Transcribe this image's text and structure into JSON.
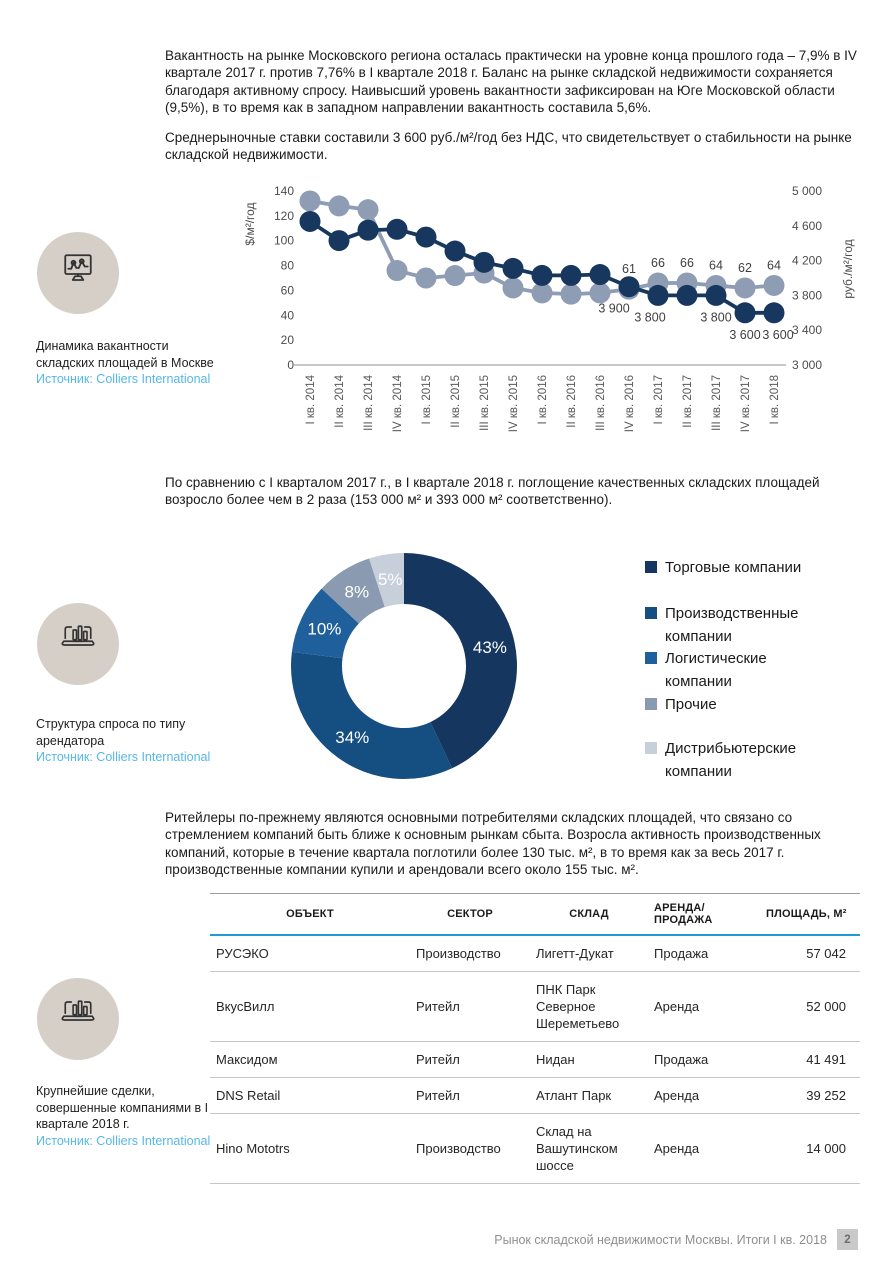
{
  "paragraphs": {
    "p1": "Вакантность на рынке Московского региона осталась практически на уровне конца прошлого года – 7,9% в IV квартале 2017 г. против 7,76% в I квартале 2018 г. Баланс на рынке складской недвижимости сохраняется благодаря активному спросу. Наивысший уровень вакантности зафиксирован на Юге Московской области (9,5%), в то время как в западном направлении вакантность составила 5,6%.",
    "p2": "Среднерыночные ставки составили 3 600 руб./м²/год без НДС, что свидетельствует о стабильности на рынке складской недвижимости.",
    "p3": "По сравнению с I кварталом 2017 г., в I квартале 2018 г. поглощение качественных складских площадей возросло более чем в 2 раза (153 000 м² и 393 000 м² соответственно).",
    "p4": "Ритейлеры по-прежнему являются основными потребителями складских площадей, что связано со стремлением компаний быть ближе к основным рынкам сбыта. Возросла активность производственных компаний, которые в течение квартала поглотили более 130 тыс. м², в то время как за весь 2017 г. производственные компании купили и арендовали всего около 155 тыс. м²."
  },
  "figures": [
    {
      "caption": "Динамика вакантности складских площадей в Москве",
      "source": "Источник: Colliers International",
      "icon": "monitor-chart-icon"
    },
    {
      "caption": "Структура спроса по типу арендатора",
      "source": "Источник: Colliers International",
      "icon": "laptop-chart-icon"
    },
    {
      "caption": "Крупнейшие сделки, совершенные компаниями в I квартале 2018 г.",
      "source": "Источник: Colliers International",
      "icon": "laptop-chart-icon"
    }
  ],
  "chart_data": [
    {
      "type": "line",
      "title": "Динамика вакантности складских площадей в Москве",
      "categories": [
        "I кв. 2014",
        "II кв. 2014",
        "III кв. 2014",
        "IV кв. 2014",
        "I кв. 2015",
        "II кв. 2015",
        "III кв. 2015",
        "IV кв. 2015",
        "I кв. 2016",
        "II кв. 2016",
        "III кв. 2016",
        "IV кв. 2016",
        "I кв. 2017",
        "II кв. 2017",
        "III кв. 2017",
        "IV кв. 2017",
        "I кв. 2018"
      ],
      "left_axis": {
        "label": "$/м²/год",
        "min": 0,
        "max": 140,
        "ticks": [
          0,
          20,
          40,
          60,
          80,
          100,
          120,
          140
        ],
        "tick_labels": [
          "0",
          "20",
          "40",
          "60",
          "80",
          "100",
          "120",
          "140"
        ]
      },
      "right_axis": {
        "label": "руб./м²/год",
        "min": 3000,
        "max": 5000,
        "ticks": [
          3000,
          3400,
          3800,
          4200,
          4600,
          5000
        ],
        "tick_labels": [
          "3 000",
          "3 400",
          "3 800",
          "4 200",
          "4 600",
          "5 000"
        ]
      },
      "series": [
        {
          "name": "$/м²/год",
          "axis": "left",
          "color": "#8e9cb4",
          "values": [
            132,
            128,
            125,
            76,
            70,
            72,
            74,
            62,
            58,
            57,
            58,
            61,
            66,
            66,
            64,
            62,
            64
          ],
          "point_labels": [
            {
              "index": 11,
              "text": "61"
            },
            {
              "index": 12,
              "text": "66"
            },
            {
              "index": 13,
              "text": "66"
            },
            {
              "index": 14,
              "text": "64"
            },
            {
              "index": 15,
              "text": "62"
            },
            {
              "index": 16,
              "text": "64"
            }
          ]
        },
        {
          "name": "руб./м²/год",
          "axis": "right",
          "color": "#17375e",
          "values": [
            4650,
            4430,
            4550,
            4560,
            4470,
            4310,
            4180,
            4110,
            4030,
            4030,
            4040,
            3900,
            3800,
            3800,
            3800,
            3600,
            3600
          ],
          "point_labels": [
            {
              "index": 11,
              "text": "3 900",
              "dx": -15
            },
            {
              "index": 12,
              "text": "3 800",
              "dx": -8
            },
            {
              "index": 14,
              "text": "3 800"
            },
            {
              "index": 15,
              "text": "3 600"
            },
            {
              "index": 16,
              "text": "3 600",
              "dx": 4
            }
          ]
        }
      ]
    },
    {
      "type": "donut",
      "title": "Структура спроса по типу арендатора",
      "legend_position": "right",
      "slices": [
        {
          "label": "Торговые компании",
          "value": 43,
          "pct_label": "43%",
          "color": "#15375f"
        },
        {
          "label": "Производственные компании",
          "value": 34,
          "pct_label": "34%",
          "color": "#154e80"
        },
        {
          "label": "Логистические компании",
          "value": 10,
          "pct_label": "10%",
          "color": "#1e5f9c"
        },
        {
          "label": "Прочие",
          "value": 8,
          "pct_label": "8%",
          "color": "#8a9ab1"
        },
        {
          "label": "Дистрибьютерские компании",
          "value": 5,
          "pct_label": "5%",
          "color": "#c7cfdb"
        }
      ]
    }
  ],
  "table": {
    "headers": [
      "ОБЪЕКТ",
      "СЕКТОР",
      "СКЛАД",
      "АРЕНДА/ПРОДАЖА",
      "ПЛОЩАДЬ, М²"
    ],
    "rows": [
      [
        "РУСЭКО",
        "Производство",
        "Лигетт-Дукат",
        "Продажа",
        "57 042"
      ],
      [
        "ВкусВилл",
        "Ритейл",
        "ПНК Парк Северное Шереметьево",
        "Аренда",
        "52 000"
      ],
      [
        "Максидом",
        "Ритейл",
        "Нидан",
        "Продажа",
        "41 491"
      ],
      [
        "DNS Retail",
        "Ритейл",
        "Атлант Парк",
        "Аренда",
        "39 252"
      ],
      [
        "Hino Mototrs",
        "Производство",
        "Склад на Вашутинском шоссе",
        "Аренда",
        "14 000"
      ]
    ]
  },
  "footer": {
    "text": "Рынок складской недвижимости Москвы. Итоги I кв. 2018",
    "page_number": "2"
  },
  "colors": {
    "navy": "#17375e",
    "steel_grey": "#8e9cb4",
    "table_accent_blue": "#1e9bd7",
    "source_blue": "#55b8e8",
    "icon_circle_beige": "#d5cfc7",
    "footer_grey": "#8f8f8f"
  }
}
